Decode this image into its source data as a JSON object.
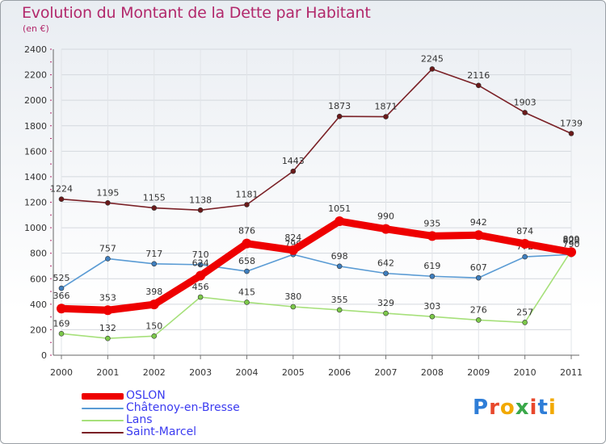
{
  "title": "Evolution du Montant de la Dette par Habitant",
  "subtitle": "(en €)",
  "logo": {
    "text": "Proxiti",
    "letter_colors": [
      "#2e7dd7",
      "#e8482c",
      "#f2a900",
      "#3aa84a",
      "#e8482c",
      "#2e7dd7",
      "#f2a900"
    ]
  },
  "colors": {
    "title": "#b2286b",
    "axis": "#555555",
    "value_labels": "#333333",
    "background_top": "#e9edf2"
  },
  "chart_data": {
    "type": "line",
    "title": "Evolution du Montant de la Dette par Habitant",
    "subtitle": "(en €)",
    "xlabel": "",
    "ylabel": "",
    "x": [
      "2000",
      "2001",
      "2002",
      "2003",
      "2004",
      "2005",
      "2006",
      "2007",
      "2008",
      "2009",
      "2010",
      "2011"
    ],
    "ylim": [
      0,
      2400
    ],
    "yticks": [
      0,
      200,
      400,
      600,
      800,
      1000,
      1200,
      1400,
      1600,
      1800,
      2000,
      2200,
      2400
    ],
    "grid": true,
    "legend_position": "bottom-left",
    "series": [
      {
        "name": "Saint-Marcel",
        "color": "#7a2026",
        "point_color": "#6b1a1a",
        "emphasis": false,
        "values": [
          1224,
          1195,
          1155,
          1138,
          1181,
          1443,
          1873,
          1871,
          2245,
          2116,
          1903,
          1739
        ],
        "labels": [
          "1224",
          "1195",
          "1155",
          "1138",
          "1181",
          "1443",
          "1873",
          "1871",
          "2245",
          "2116",
          "1903",
          "1739"
        ]
      },
      {
        "name": "Châtenoy-en-Bresse",
        "color": "#5a9bd4",
        "point_color": "#3f7fbf",
        "emphasis": false,
        "values": [
          525,
          757,
          717,
          710,
          658,
          790,
          698,
          642,
          619,
          607,
          772,
          790
        ],
        "labels": [
          "525",
          "757",
          "717",
          "710",
          "658",
          "790",
          "698",
          "642",
          "619",
          "607",
          "772",
          "790"
        ]
      },
      {
        "name": "Lans",
        "color": "#a6e07a",
        "point_color": "#7cc94a",
        "emphasis": false,
        "values": [
          169,
          132,
          150,
          456,
          415,
          380,
          355,
          329,
          303,
          276,
          257,
          820
        ],
        "labels": [
          "169",
          "132",
          "150",
          "456",
          "415",
          "380",
          "355",
          "329",
          "303",
          "276",
          "257",
          "820"
        ]
      },
      {
        "name": "OSLON",
        "color": "#ee0000",
        "point_color": "#ee0000",
        "emphasis": true,
        "values": [
          366,
          353,
          398,
          624,
          876,
          824,
          1051,
          990,
          935,
          942,
          874,
          809
        ],
        "labels": [
          "366",
          "353",
          "398",
          "624",
          "876",
          "824",
          "1051",
          "990",
          "935",
          "942",
          "874",
          "809"
        ]
      }
    ],
    "legend_order": [
      "OSLON",
      "Châtenoy-en-Bresse",
      "Lans",
      "Saint-Marcel"
    ]
  },
  "legend_colors": {
    "OSLON": "#ee0000",
    "Châtenoy-en-Bresse": "#5a9bd4",
    "Lans": "#a6e07a",
    "Saint-Marcel": "#7a2026"
  },
  "legend_text_colors": {
    "OSLON": "#3b3bf0",
    "Châtenoy-en-Bresse": "#3b3bf0",
    "Lans": "#3b3bf0",
    "Saint-Marcel": "#3b3bf0"
  }
}
